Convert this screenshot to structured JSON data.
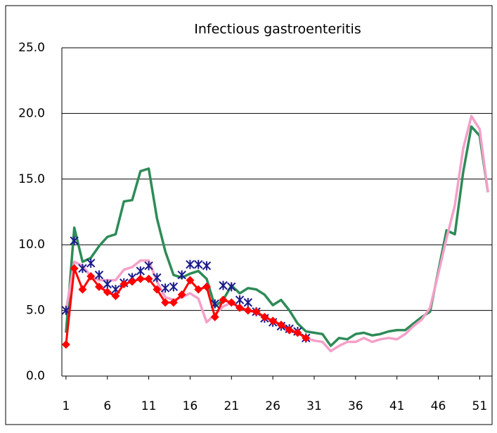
{
  "chart_data": {
    "type": "line",
    "title": "Infectious gastroenteritis",
    "x": [
      1,
      2,
      3,
      4,
      5,
      6,
      7,
      8,
      9,
      10,
      11,
      12,
      13,
      14,
      15,
      16,
      17,
      18,
      19,
      20,
      21,
      22,
      23,
      24,
      25,
      26,
      27,
      28,
      29,
      30,
      31,
      32,
      33,
      34,
      35,
      36,
      37,
      38,
      39,
      40,
      41,
      42,
      43,
      44,
      45,
      46,
      47,
      48,
      49,
      50,
      51,
      52
    ],
    "xlim": [
      0.5,
      52.5
    ],
    "xticks": [
      1,
      6,
      11,
      16,
      21,
      26,
      31,
      36,
      41,
      46,
      51
    ],
    "ylim": [
      0,
      25
    ],
    "yticks": [
      {
        "value": 0,
        "label": "0.0"
      },
      {
        "value": 5,
        "label": "5.0"
      },
      {
        "value": 10,
        "label": "10.0"
      },
      {
        "value": 15,
        "label": "15.0"
      },
      {
        "value": 20,
        "label": "20.0"
      },
      {
        "value": 25,
        "label": "25.0"
      }
    ],
    "grid": true,
    "series": [
      {
        "color": "#2e8b57",
        "marker": "none",
        "values": [
          3.3,
          11.3,
          8.7,
          9.0,
          9.9,
          10.6,
          10.8,
          13.3,
          13.4,
          15.6,
          15.8,
          12.0,
          9.5,
          7.7,
          7.5,
          7.8,
          8.0,
          7.4,
          5.3,
          5.8,
          6.9,
          6.3,
          6.7,
          6.6,
          6.2,
          5.4,
          5.8,
          5.0,
          4.0,
          3.4,
          3.3,
          3.2,
          2.3,
          2.9,
          2.8,
          3.2,
          3.3,
          3.1,
          3.2,
          3.4,
          3.5,
          3.5,
          4.0,
          4.5,
          4.9,
          8.0,
          11.1,
          10.8,
          15.5,
          19.0,
          18.3,
          14.0
        ]
      },
      {
        "color": "#f4a0c8",
        "marker": "none",
        "values": [
          5.0,
          8.7,
          8.4,
          7.6,
          7.3,
          7.3,
          7.3,
          8.1,
          8.3,
          8.8,
          8.8,
          7.2,
          6.0,
          5.8,
          6.0,
          6.3,
          5.9,
          4.1,
          4.7,
          5.3,
          5.6,
          5.2,
          5.0,
          4.8,
          4.5,
          4.2,
          3.9,
          3.6,
          3.3,
          2.9,
          2.7,
          2.6,
          1.9,
          2.3,
          2.6,
          2.6,
          2.9,
          2.6,
          2.8,
          2.9,
          2.8,
          3.2,
          3.8,
          4.3,
          5.2,
          7.8,
          10.5,
          13.0,
          17.3,
          19.8,
          18.8,
          14.0
        ]
      },
      {
        "color": "#1a1a8c",
        "marker": "asterisk",
        "values": [
          5.0,
          10.3,
          8.2,
          8.6,
          7.7,
          7.0,
          6.6,
          7.1,
          7.5,
          8.0,
          8.4,
          7.5,
          6.7,
          6.8,
          7.7,
          8.5,
          8.5,
          8.4,
          5.5,
          6.9,
          6.8,
          5.8,
          5.6,
          4.9,
          4.4,
          4.1,
          3.8,
          3.6,
          3.4,
          2.9,
          null,
          null,
          null,
          null,
          null,
          null,
          null,
          null,
          null,
          null,
          null,
          null,
          null,
          null,
          null,
          null,
          null,
          null,
          null,
          null,
          null,
          null
        ]
      },
      {
        "color": "#ff0000",
        "marker": "diamond",
        "values": [
          2.4,
          8.2,
          6.6,
          7.6,
          6.8,
          6.4,
          6.1,
          7.0,
          7.2,
          7.4,
          7.4,
          6.6,
          5.6,
          5.6,
          6.2,
          7.3,
          6.6,
          6.8,
          4.5,
          5.8,
          5.6,
          5.2,
          5.0,
          4.9,
          4.5,
          4.2,
          3.9,
          3.5,
          3.3,
          2.9,
          null,
          null,
          null,
          null,
          null,
          null,
          null,
          null,
          null,
          null,
          null,
          null,
          null,
          null,
          null,
          null,
          null,
          null,
          null,
          null,
          null,
          null
        ]
      }
    ]
  }
}
